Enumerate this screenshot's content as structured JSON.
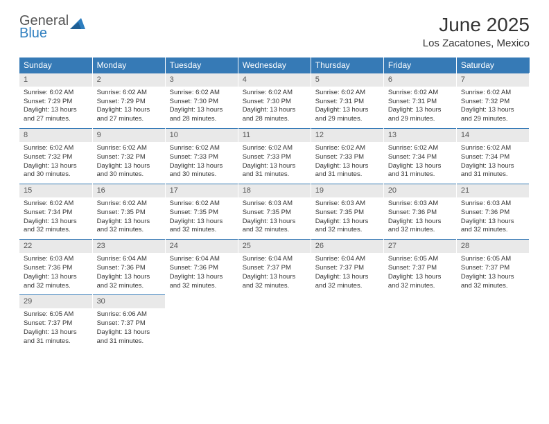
{
  "brand": {
    "line1": "General",
    "line2": "Blue",
    "color_accent": "#2d7ebf",
    "color_text": "#555555"
  },
  "title": "June 2025",
  "location": "Los Zacatones, Mexico",
  "header_bg": "#367ab6",
  "header_text_color": "#ffffff",
  "daynum_bg": "#e9e9e9",
  "daynum_border_top": "#367ab6",
  "text_color": "#333333",
  "font_sizes": {
    "title": 28,
    "subtitle": 15,
    "weekday": 12,
    "daynum": 11,
    "body": 9.5
  },
  "weekdays": [
    "Sunday",
    "Monday",
    "Tuesday",
    "Wednesday",
    "Thursday",
    "Friday",
    "Saturday"
  ],
  "days": [
    {
      "n": 1,
      "sunrise": "6:02 AM",
      "sunset": "7:29 PM",
      "daylight": "13 hours and 27 minutes."
    },
    {
      "n": 2,
      "sunrise": "6:02 AM",
      "sunset": "7:29 PM",
      "daylight": "13 hours and 27 minutes."
    },
    {
      "n": 3,
      "sunrise": "6:02 AM",
      "sunset": "7:30 PM",
      "daylight": "13 hours and 28 minutes."
    },
    {
      "n": 4,
      "sunrise": "6:02 AM",
      "sunset": "7:30 PM",
      "daylight": "13 hours and 28 minutes."
    },
    {
      "n": 5,
      "sunrise": "6:02 AM",
      "sunset": "7:31 PM",
      "daylight": "13 hours and 29 minutes."
    },
    {
      "n": 6,
      "sunrise": "6:02 AM",
      "sunset": "7:31 PM",
      "daylight": "13 hours and 29 minutes."
    },
    {
      "n": 7,
      "sunrise": "6:02 AM",
      "sunset": "7:32 PM",
      "daylight": "13 hours and 29 minutes."
    },
    {
      "n": 8,
      "sunrise": "6:02 AM",
      "sunset": "7:32 PM",
      "daylight": "13 hours and 30 minutes."
    },
    {
      "n": 9,
      "sunrise": "6:02 AM",
      "sunset": "7:32 PM",
      "daylight": "13 hours and 30 minutes."
    },
    {
      "n": 10,
      "sunrise": "6:02 AM",
      "sunset": "7:33 PM",
      "daylight": "13 hours and 30 minutes."
    },
    {
      "n": 11,
      "sunrise": "6:02 AM",
      "sunset": "7:33 PM",
      "daylight": "13 hours and 31 minutes."
    },
    {
      "n": 12,
      "sunrise": "6:02 AM",
      "sunset": "7:33 PM",
      "daylight": "13 hours and 31 minutes."
    },
    {
      "n": 13,
      "sunrise": "6:02 AM",
      "sunset": "7:34 PM",
      "daylight": "13 hours and 31 minutes."
    },
    {
      "n": 14,
      "sunrise": "6:02 AM",
      "sunset": "7:34 PM",
      "daylight": "13 hours and 31 minutes."
    },
    {
      "n": 15,
      "sunrise": "6:02 AM",
      "sunset": "7:34 PM",
      "daylight": "13 hours and 32 minutes."
    },
    {
      "n": 16,
      "sunrise": "6:02 AM",
      "sunset": "7:35 PM",
      "daylight": "13 hours and 32 minutes."
    },
    {
      "n": 17,
      "sunrise": "6:02 AM",
      "sunset": "7:35 PM",
      "daylight": "13 hours and 32 minutes."
    },
    {
      "n": 18,
      "sunrise": "6:03 AM",
      "sunset": "7:35 PM",
      "daylight": "13 hours and 32 minutes."
    },
    {
      "n": 19,
      "sunrise": "6:03 AM",
      "sunset": "7:35 PM",
      "daylight": "13 hours and 32 minutes."
    },
    {
      "n": 20,
      "sunrise": "6:03 AM",
      "sunset": "7:36 PM",
      "daylight": "13 hours and 32 minutes."
    },
    {
      "n": 21,
      "sunrise": "6:03 AM",
      "sunset": "7:36 PM",
      "daylight": "13 hours and 32 minutes."
    },
    {
      "n": 22,
      "sunrise": "6:03 AM",
      "sunset": "7:36 PM",
      "daylight": "13 hours and 32 minutes."
    },
    {
      "n": 23,
      "sunrise": "6:04 AM",
      "sunset": "7:36 PM",
      "daylight": "13 hours and 32 minutes."
    },
    {
      "n": 24,
      "sunrise": "6:04 AM",
      "sunset": "7:36 PM",
      "daylight": "13 hours and 32 minutes."
    },
    {
      "n": 25,
      "sunrise": "6:04 AM",
      "sunset": "7:37 PM",
      "daylight": "13 hours and 32 minutes."
    },
    {
      "n": 26,
      "sunrise": "6:04 AM",
      "sunset": "7:37 PM",
      "daylight": "13 hours and 32 minutes."
    },
    {
      "n": 27,
      "sunrise": "6:05 AM",
      "sunset": "7:37 PM",
      "daylight": "13 hours and 32 minutes."
    },
    {
      "n": 28,
      "sunrise": "6:05 AM",
      "sunset": "7:37 PM",
      "daylight": "13 hours and 32 minutes."
    },
    {
      "n": 29,
      "sunrise": "6:05 AM",
      "sunset": "7:37 PM",
      "daylight": "13 hours and 31 minutes."
    },
    {
      "n": 30,
      "sunrise": "6:06 AM",
      "sunset": "7:37 PM",
      "daylight": "13 hours and 31 minutes."
    }
  ],
  "labels": {
    "sunrise": "Sunrise:",
    "sunset": "Sunset:",
    "daylight": "Daylight:"
  },
  "layout": {
    "first_day_column": 0,
    "rows": 5,
    "cols": 7
  }
}
